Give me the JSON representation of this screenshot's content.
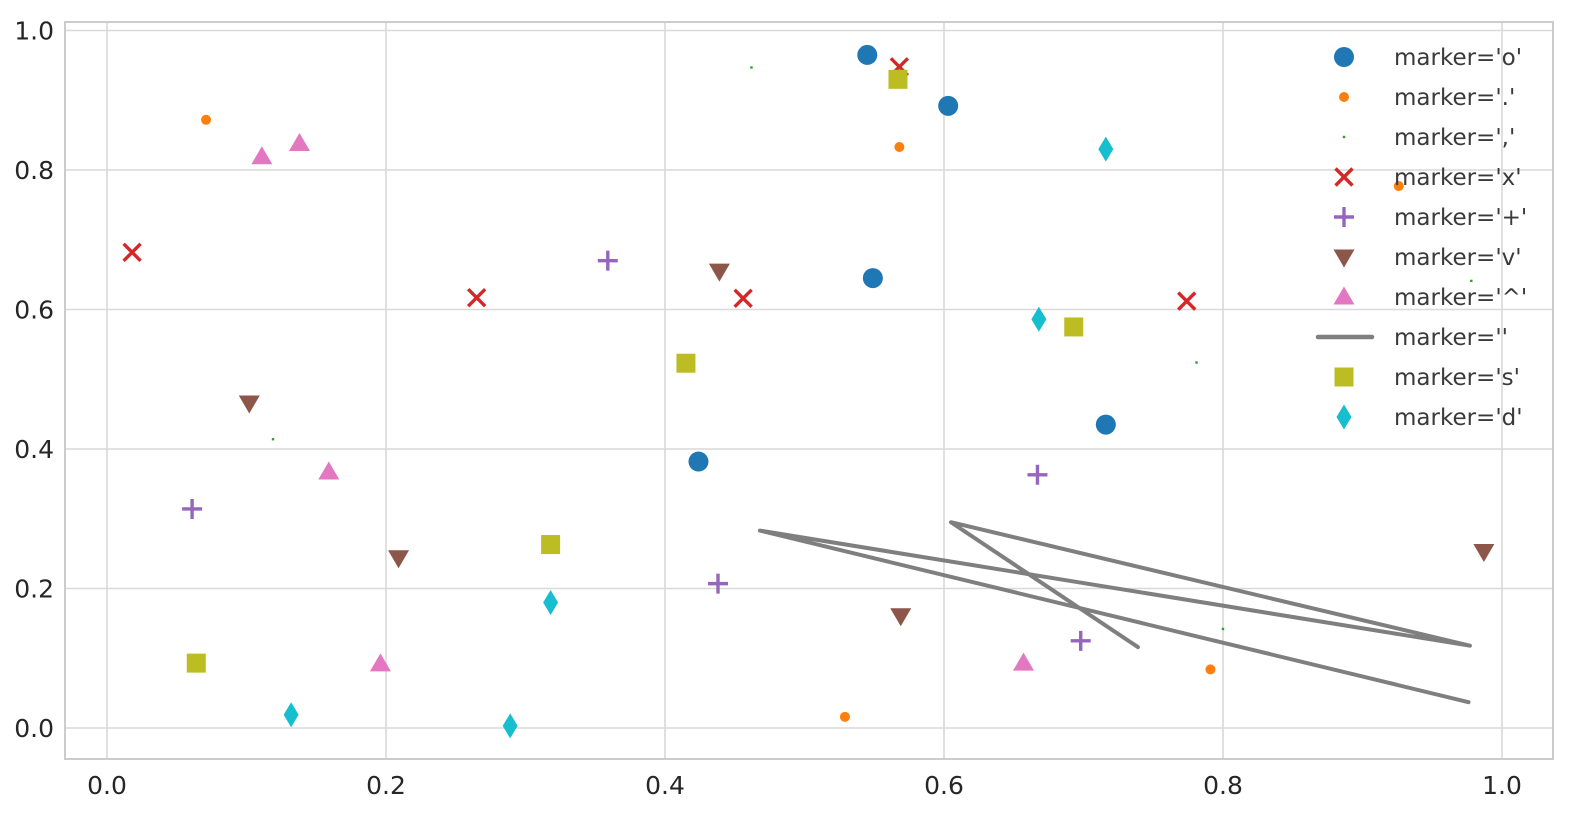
{
  "chart_data": {
    "type": "scatter",
    "title": "",
    "xlabel": "",
    "ylabel": "",
    "xlim": [
      -0.03,
      1.037
    ],
    "ylim": [
      -0.045,
      1.012
    ],
    "grid": true,
    "legend_position": "upper right",
    "x_ticks": [
      0.0,
      0.2,
      0.4,
      0.6,
      0.8,
      1.0
    ],
    "y_ticks": [
      0.0,
      0.2,
      0.4,
      0.6,
      0.8,
      1.0
    ],
    "x_tick_labels": [
      "0.0",
      "0.2",
      "0.4",
      "0.6",
      "0.8",
      "1.0"
    ],
    "y_tick_labels": [
      "0.0",
      "0.2",
      "0.4",
      "0.6",
      "0.8",
      "1.0"
    ],
    "series": [
      {
        "label": "marker='o'",
        "marker": "o",
        "color": "#1f77b4",
        "line": false,
        "points": [
          [
            0.545,
            0.965
          ],
          [
            0.603,
            0.892
          ],
          [
            0.549,
            0.645
          ],
          [
            0.716,
            0.435
          ],
          [
            0.424,
            0.382
          ]
        ]
      },
      {
        "label": "marker='.'",
        "marker": ".",
        "color": "#ff7f0e",
        "line": false,
        "points": [
          [
            0.071,
            0.872
          ],
          [
            0.568,
            0.833
          ],
          [
            0.926,
            0.777
          ],
          [
            0.791,
            0.084
          ],
          [
            0.529,
            0.016
          ]
        ]
      },
      {
        "label": "marker=','",
        "marker": ",",
        "color": "#2ca02c",
        "line": false,
        "points": [
          [
            0.462,
            0.947
          ],
          [
            0.978,
            0.641
          ],
          [
            0.781,
            0.524
          ],
          [
            0.119,
            0.414
          ],
          [
            0.8,
            0.142
          ]
        ]
      },
      {
        "label": "marker='x'",
        "marker": "x",
        "color": "#d62728",
        "line": false,
        "points": [
          [
            0.018,
            0.682
          ],
          [
            0.568,
            0.948
          ],
          [
            0.265,
            0.617
          ],
          [
            0.456,
            0.616
          ],
          [
            0.774,
            0.612
          ]
        ]
      },
      {
        "label": "marker='+'",
        "marker": "+",
        "color": "#9467bd",
        "line": false,
        "points": [
          [
            0.061,
            0.314
          ],
          [
            0.359,
            0.67
          ],
          [
            0.438,
            0.207
          ],
          [
            0.667,
            0.363
          ],
          [
            0.698,
            0.125
          ]
        ]
      },
      {
        "label": "marker='v'",
        "marker": "v",
        "color": "#8c564b",
        "line": false,
        "points": [
          [
            0.102,
            0.466
          ],
          [
            0.209,
            0.244
          ],
          [
            0.439,
            0.655
          ],
          [
            0.569,
            0.161
          ],
          [
            0.987,
            0.253
          ]
        ]
      },
      {
        "label": "marker='^'",
        "marker": "^",
        "color": "#e377c2",
        "line": false,
        "points": [
          [
            0.111,
            0.819
          ],
          [
            0.138,
            0.838
          ],
          [
            0.159,
            0.367
          ],
          [
            0.196,
            0.092
          ],
          [
            0.657,
            0.093
          ]
        ]
      },
      {
        "label": "marker=''",
        "marker": "",
        "color": "#7f7f7f",
        "line": true,
        "points": [
          [
            0.739,
            0.116
          ],
          [
            0.605,
            0.295
          ],
          [
            0.977,
            0.118
          ],
          [
            0.468,
            0.283
          ],
          [
            0.976,
            0.037
          ]
        ]
      },
      {
        "label": "marker='s'",
        "marker": "s",
        "color": "#bcbd22",
        "line": false,
        "points": [
          [
            0.064,
            0.093
          ],
          [
            0.318,
            0.263
          ],
          [
            0.415,
            0.523
          ],
          [
            0.567,
            0.93
          ],
          [
            0.693,
            0.575
          ]
        ]
      },
      {
        "label": "marker='d'",
        "marker": "d",
        "color": "#17becf",
        "line": false,
        "points": [
          [
            0.132,
            0.019
          ],
          [
            0.289,
            0.003
          ],
          [
            0.318,
            0.18
          ],
          [
            0.668,
            0.586
          ],
          [
            0.716,
            0.83
          ]
        ]
      }
    ]
  },
  "style": {
    "background": "#ffffff",
    "grid_color": "#d9d9d9",
    "spine_color": "#cccccc",
    "tick_label_color": "#262626",
    "legend_text_color": "#3a3a3a"
  }
}
